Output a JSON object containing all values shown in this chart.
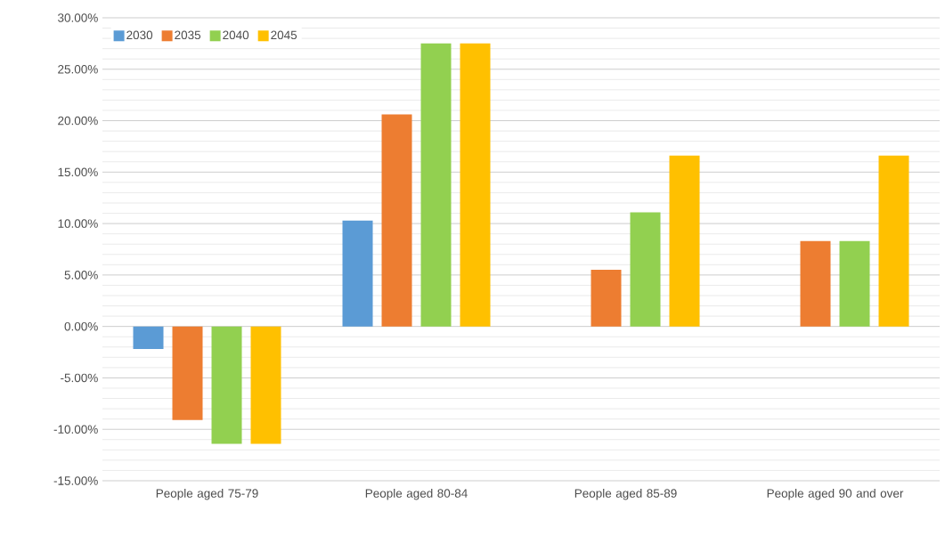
{
  "chart_data": {
    "type": "bar",
    "categories": [
      "People aged 75-79",
      "People aged 80-84",
      "People aged 85-89",
      "People aged 90 and over"
    ],
    "series": [
      {
        "name": "2030",
        "color": "#5b9bd5",
        "values": [
          -2.2,
          10.3,
          0,
          0
        ]
      },
      {
        "name": "2035",
        "color": "#ed7d31",
        "values": [
          -9.1,
          20.6,
          5.5,
          8.3
        ]
      },
      {
        "name": "2040",
        "color": "#92d050",
        "values": [
          -11.4,
          27.5,
          11.1,
          8.3
        ]
      },
      {
        "name": "2045",
        "color": "#ffc000",
        "values": [
          -11.4,
          27.5,
          16.6,
          16.6
        ]
      }
    ],
    "ylim": [
      -15,
      30
    ],
    "yticks": [
      {
        "value": -15,
        "label": "-15.00%"
      },
      {
        "value": -10,
        "label": "-10.00%"
      },
      {
        "value": -5,
        "label": "-5.00%"
      },
      {
        "value": 0,
        "label": "0.00%"
      },
      {
        "value": 5,
        "label": "5.00%"
      },
      {
        "value": 10,
        "label": "10.00%"
      },
      {
        "value": 15,
        "label": "15.00%"
      },
      {
        "value": 20,
        "label": "20.00%"
      },
      {
        "value": 25,
        "label": "25.00%"
      },
      {
        "value": 30,
        "label": "30.00%"
      }
    ],
    "grid": "y",
    "legend": "top left"
  }
}
